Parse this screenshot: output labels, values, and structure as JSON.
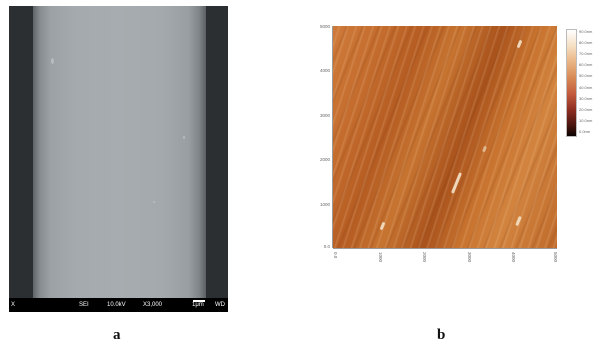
{
  "panel_a": {
    "label": "a",
    "image_name": "sem-fiber-micrograph",
    "scale_bar": {
      "left_text": "X",
      "detector": "SEI",
      "voltage": "10.0kV",
      "magnification": "X3,000",
      "scale": "1μm",
      "wd": "WD"
    }
  },
  "panel_b": {
    "label": "b",
    "image_name": "afm-height-map",
    "y_ticks": [
      "5000",
      "4000",
      "3000",
      "2000",
      "1000",
      "0.0"
    ],
    "x_ticks": [
      "0.0",
      "1000",
      "2000",
      "3000",
      "4000",
      "5000"
    ],
    "colorbar_ticks": [
      "90.0nm",
      "80.0nm",
      "70.0nm",
      "60.0nm",
      "50.0nm",
      "40.0nm",
      "30.0nm",
      "20.0nm",
      "10.0nm",
      "0.0nm"
    ],
    "colors": {
      "accent": "#c36b2d",
      "dark": "#a9521c",
      "light": "#f4e2c8"
    }
  }
}
